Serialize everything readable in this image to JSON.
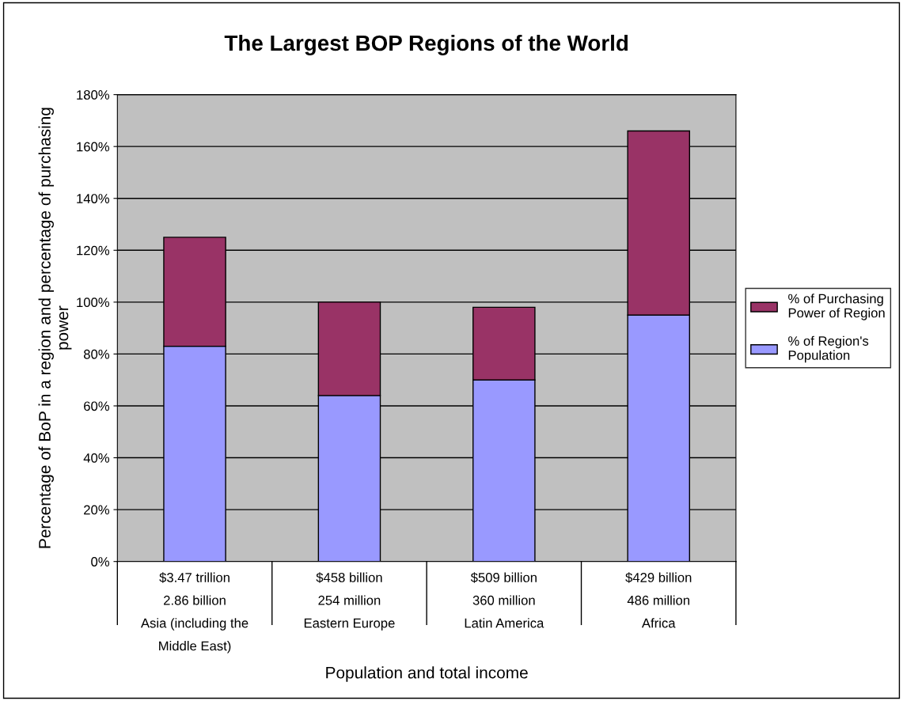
{
  "chart_data": {
    "type": "bar",
    "title": "The Largest BOP Regions of the World",
    "xlabel": "Population and total income",
    "ylabel": "Percentage of BoP in a region and percentage of purchasing\npower",
    "categories": [
      "$3.47 trillion\n2.86 billion\nAsia (including the\nMiddle East)",
      "$458 billion\n254 million\nEastern Europe",
      "$509 billion\n360 million\nLatin America",
      "$429 billion\n486 million\nAfrica"
    ],
    "stacked": true,
    "series": [
      {
        "name": "% of Region's\nPopulation",
        "color": "#9999ff",
        "values": [
          83,
          64,
          70,
          95
        ]
      },
      {
        "name": "% of Purchasing\nPower of Region",
        "color": "#993366",
        "values": [
          42,
          36,
          28,
          71
        ]
      }
    ],
    "ylim": [
      0,
      180
    ],
    "yticks": [
      {
        "value": 0,
        "label": "0%"
      },
      {
        "value": 20,
        "label": "20%"
      },
      {
        "value": 40,
        "label": "40%"
      },
      {
        "value": 60,
        "label": "60%"
      },
      {
        "value": 80,
        "label": "80%"
      },
      {
        "value": 100,
        "label": "100%"
      },
      {
        "value": 120,
        "label": "120%"
      },
      {
        "value": 140,
        "label": "140%"
      },
      {
        "value": 160,
        "label": "160%"
      },
      {
        "value": 180,
        "label": "180%"
      }
    ],
    "grid": "y",
    "legend": "right"
  }
}
